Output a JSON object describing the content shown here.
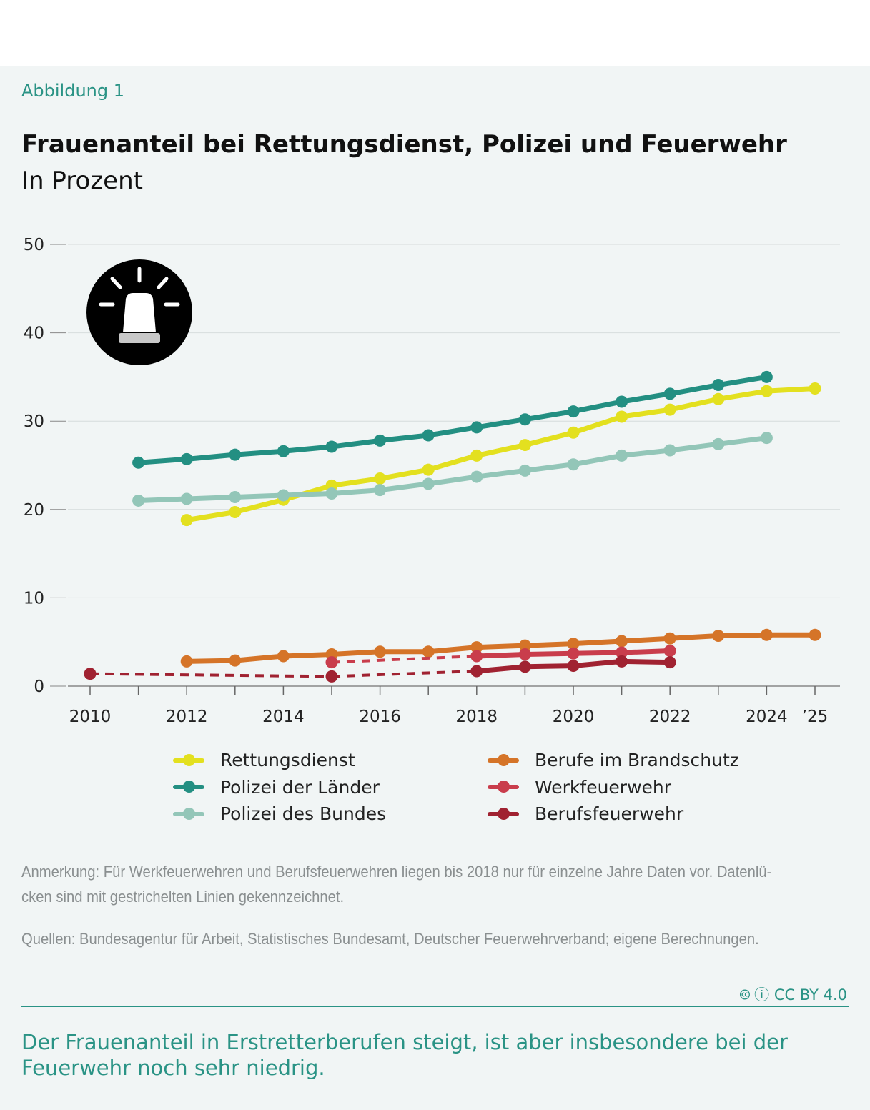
{
  "figure_label": "Abbildung 1",
  "title": "Frauenanteil bei Rettungsdienst, Polizei und Feuerwehr",
  "subtitle": "In Prozent",
  "icon": "siren-icon",
  "chart_data": {
    "type": "line",
    "title": "Frauenanteil bei Rettungsdienst, Polizei und Feuerwehr",
    "ylabel": "In Prozent",
    "ylim": [
      0,
      50
    ],
    "xlim": [
      2010,
      2025
    ],
    "yticks": [
      0,
      10,
      20,
      30,
      40,
      50
    ],
    "xticks": [
      {
        "v": 2010,
        "l": "2010"
      },
      {
        "v": 2012,
        "l": "2012"
      },
      {
        "v": 2014,
        "l": "2014"
      },
      {
        "v": 2016,
        "l": "2016"
      },
      {
        "v": 2018,
        "l": "2018"
      },
      {
        "v": 2020,
        "l": "2020"
      },
      {
        "v": 2022,
        "l": "2022"
      },
      {
        "v": 2024,
        "l": "2024"
      },
      {
        "v": 2025,
        "l": "’25"
      }
    ],
    "grid": true,
    "legend_placement": "bottom",
    "series": [
      {
        "name": "Rettungsdienst",
        "color": "#e3e01f",
        "x": [
          2012,
          2013,
          2014,
          2015,
          2016,
          2017,
          2018,
          2019,
          2020,
          2021,
          2022,
          2023,
          2024,
          2025
        ],
        "y": [
          18.8,
          19.7,
          21.1,
          22.7,
          23.5,
          24.5,
          26.1,
          27.3,
          28.7,
          30.5,
          31.3,
          32.5,
          33.4,
          33.7
        ]
      },
      {
        "name": "Polizei der Länder",
        "color": "#238f82",
        "x": [
          2011,
          2012,
          2013,
          2014,
          2015,
          2016,
          2017,
          2018,
          2019,
          2020,
          2021,
          2022,
          2023,
          2024
        ],
        "y": [
          25.3,
          25.7,
          26.2,
          26.6,
          27.1,
          27.8,
          28.4,
          29.3,
          30.2,
          31.1,
          32.2,
          33.1,
          34.1,
          35.0
        ]
      },
      {
        "name": "Polizei des Bundes",
        "color": "#93c6b8",
        "x": [
          2011,
          2012,
          2013,
          2014,
          2015,
          2016,
          2017,
          2018,
          2019,
          2020,
          2021,
          2022,
          2023,
          2024
        ],
        "y": [
          21.0,
          21.2,
          21.4,
          21.6,
          21.8,
          22.2,
          22.9,
          23.7,
          24.4,
          25.1,
          26.1,
          26.7,
          27.4,
          28.1
        ]
      },
      {
        "name": "Berufe im Brandschutz",
        "color": "#d57428",
        "x": [
          2012,
          2013,
          2014,
          2015,
          2016,
          2017,
          2018,
          2019,
          2020,
          2021,
          2022,
          2023,
          2024,
          2025
        ],
        "y": [
          2.8,
          2.9,
          3.4,
          3.6,
          3.9,
          3.9,
          4.4,
          4.6,
          4.8,
          5.1,
          5.4,
          5.7,
          5.8,
          5.8
        ]
      },
      {
        "name": "Werkfeuerwehr",
        "color": "#c93d4c",
        "x": [
          2015,
          2018,
          2019,
          2020,
          2021,
          2022
        ],
        "y": [
          2.7,
          3.4,
          3.6,
          3.7,
          3.8,
          4.0
        ],
        "dashed_until": 2018
      },
      {
        "name": "Berufsfeuerwehr",
        "color": "#a02231",
        "x": [
          2010,
          2015,
          2018,
          2019,
          2020,
          2021,
          2022
        ],
        "y": [
          1.4,
          1.1,
          1.7,
          2.2,
          2.3,
          2.8,
          2.7
        ],
        "dashed_until": 2018
      }
    ]
  },
  "note": "Anmerkung: Für Werkfeuerwehren und Berufsfeuerwehren liegen bis 2018 nur für einzelne Jahre Daten vor. Datenlü-cken sind mit gestrichelten Linien gekennzeichnet.",
  "sources": "Quellen: Bundesagentur für Arbeit, Statistisches Bundesamt, Deutscher Feuerwehrverband; eigene Berechnungen.",
  "license": "CC BY 4.0",
  "takeaway": "Der Frauenanteil in Erstretterberufen steigt, ist aber insbesondere bei der Feuerwehr noch sehr niedrig."
}
